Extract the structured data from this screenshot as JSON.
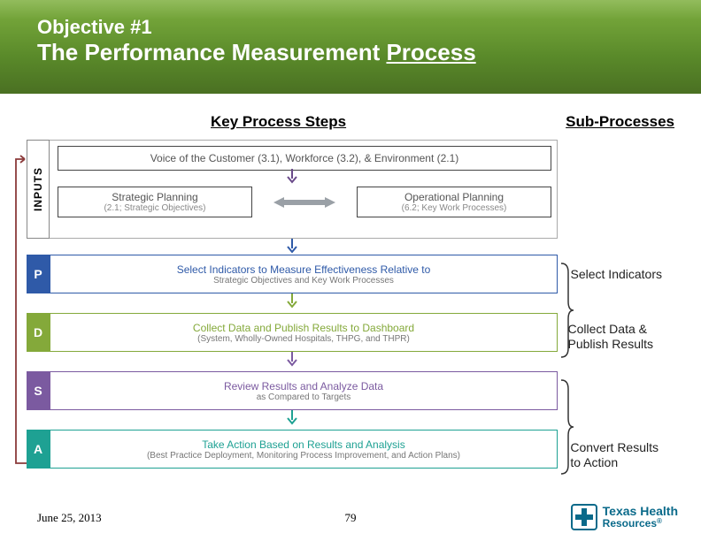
{
  "slide": {
    "title_line1": "Objective #1",
    "title_line2_prefix": "The Performance Measurement ",
    "title_line2_underlined": "Process",
    "banner_gradient": [
      "#7fb040",
      "#5a8a2a",
      "#4a7022"
    ]
  },
  "headers": {
    "key_process_steps": "Key Process Steps",
    "sub_processes": "Sub-Processes"
  },
  "inputs_label": "INPUTS",
  "voc_box": {
    "text": "Voice of the Customer (3.1), Workforce (3.2), & Environment (2.1)",
    "border_color": "#444444",
    "text_color": "#6a6a6a"
  },
  "planning": {
    "strategic": {
      "title": "Strategic Planning",
      "sub": "(2.1; Strategic Objectives)"
    },
    "operational": {
      "title": "Operational Planning",
      "sub": "(6.2; Key Work Processes)"
    },
    "arrow_color": "#9aa0a6",
    "box_border": "#444444"
  },
  "steps": [
    {
      "tag": "P",
      "tag_color": "#2f5aa8",
      "border_color": "#2f5aa8",
      "title": "Select Indicators to Measure Effectiveness Relative to",
      "sub": "Strategic Objectives and Key Work Processes",
      "title_color": "#2f5aa8",
      "arrow_after": "#84a93a"
    },
    {
      "tag": "D",
      "tag_color": "#84a93a",
      "border_color": "#84a93a",
      "title": "Collect Data and Publish Results to Dashboard",
      "sub": "(System, Wholly-Owned Hospitals, THPG, and THPR)",
      "title_color": "#84a93a",
      "arrow_after": "#7b5aa0"
    },
    {
      "tag": "S",
      "tag_color": "#7b5aa0",
      "border_color": "#7b5aa0",
      "title": "Review Results and Analyze Data",
      "sub": "as Compared to Targets",
      "title_color": "#7b5aa0",
      "arrow_after": "#1ea193"
    },
    {
      "tag": "A",
      "tag_color": "#1ea193",
      "border_color": "#1ea193",
      "title": "Take Action Based on Results and Analysis",
      "sub": "(Best Practice Deployment, Monitoring Process Improvement, and Action Plans)",
      "title_color": "#1ea193",
      "arrow_after": null
    }
  ],
  "voc_arrow_color": "#6a4a8a",
  "inputs_arrow_color": "#2f5aa8",
  "sub_process_labels": {
    "select": "Select Indicators",
    "collect_line1": "Collect Data &",
    "collect_line2": "Publish Results",
    "convert_line1": "Convert Results",
    "convert_line2": "to Action"
  },
  "bracket_color": "#333333",
  "feedback_loop_color": "#8b3a3a",
  "footer": {
    "date": "June 25, 2013",
    "page": "79"
  },
  "logo": {
    "text_line1": "Texas Health",
    "text_line2": "Resources",
    "color": "#0a6a8a",
    "trademark": "®"
  }
}
